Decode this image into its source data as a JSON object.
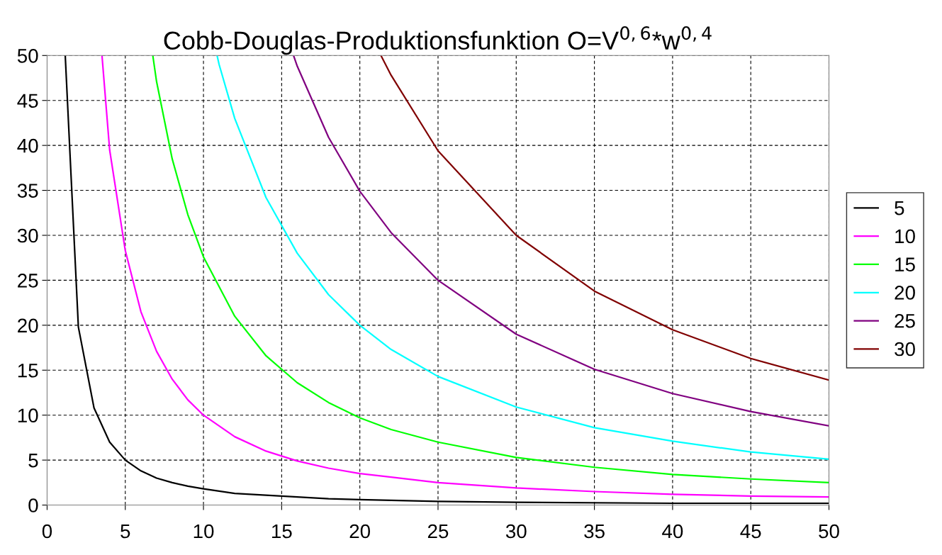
{
  "chart_data": {
    "type": "line",
    "title": "Cobb-Douglas-Produktionsfunktion O=V$^{0,6}$*w$^{0,4}$",
    "xlim": [
      0,
      50
    ],
    "ylim": [
      0,
      50
    ],
    "xticks": [
      0,
      5,
      10,
      15,
      20,
      25,
      30,
      35,
      40,
      45,
      50
    ],
    "yticks": [
      0,
      5,
      10,
      15,
      20,
      25,
      30,
      35,
      40,
      45,
      50
    ],
    "grid": true,
    "legend": "right",
    "marker": "none",
    "line_style": "solid",
    "series": [
      {
        "name": "5",
        "color": "#000000",
        "x": [
          1.16,
          2,
          3,
          4,
          5,
          6,
          7,
          8,
          9,
          10,
          12,
          14,
          16,
          18,
          20,
          25,
          30,
          40,
          50
        ],
        "values": [
          50,
          19.8,
          10.8,
          7.0,
          5.0,
          3.8,
          3.0,
          2.5,
          2.1,
          1.8,
          1.3,
          1.1,
          0.9,
          0.7,
          0.6,
          0.4,
          0.3,
          0.2,
          0.2
        ]
      },
      {
        "name": "10",
        "color": "#ff00ff",
        "x": [
          3.51,
          4,
          5,
          6,
          7,
          8,
          9,
          10,
          12,
          14,
          16,
          18,
          20,
          22,
          25,
          30,
          35,
          40,
          45,
          50
        ],
        "values": [
          50,
          39.5,
          28.3,
          21.5,
          17.1,
          14.0,
          11.7,
          10.0,
          7.6,
          6.0,
          4.9,
          4.1,
          3.5,
          3.1,
          2.5,
          1.9,
          1.5,
          1.2,
          1.0,
          0.9
        ]
      },
      {
        "name": "15",
        "color": "#00ff00",
        "x": [
          6.76,
          7,
          8,
          9,
          10,
          12,
          14,
          16,
          18,
          20,
          22,
          25,
          30,
          35,
          40,
          45,
          50
        ],
        "values": [
          50,
          47.1,
          38.5,
          32.3,
          27.6,
          21.0,
          16.6,
          13.6,
          11.4,
          9.7,
          8.4,
          7.0,
          5.3,
          4.2,
          3.4,
          2.9,
          2.5
        ]
      },
      {
        "name": "20",
        "color": "#00ffff",
        "x": [
          10.87,
          11,
          12,
          14,
          16,
          18,
          20,
          22,
          25,
          30,
          35,
          40,
          45,
          50
        ],
        "values": [
          50,
          49.0,
          43.0,
          34.2,
          28.0,
          23.4,
          20.0,
          17.3,
          14.3,
          10.9,
          8.6,
          7.1,
          5.9,
          5.1
        ]
      },
      {
        "name": "25",
        "color": "#800080",
        "x": [
          15.76,
          16,
          18,
          20,
          22,
          25,
          30,
          35,
          40,
          45,
          50
        ],
        "values": [
          50,
          48.8,
          40.9,
          34.9,
          30.3,
          25.0,
          19.0,
          15.1,
          12.4,
          10.4,
          8.8
        ]
      },
      {
        "name": "30",
        "color": "#800000",
        "x": [
          21.35,
          22,
          25,
          30,
          35,
          40,
          45,
          50
        ],
        "values": [
          50,
          47.8,
          39.4,
          30.0,
          23.8,
          19.5,
          16.3,
          13.9
        ]
      }
    ]
  }
}
